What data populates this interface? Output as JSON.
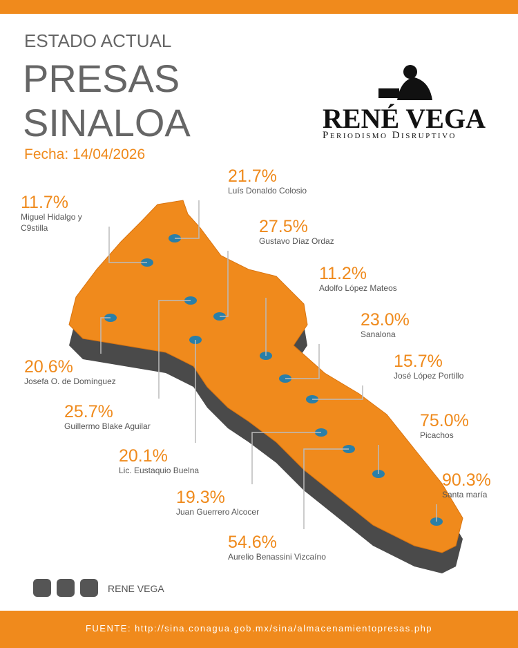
{
  "header": {
    "kicker": "ESTADO ACTUAL",
    "title_line1": "PRESAS",
    "title_line2": "SINALOA",
    "date": "Fecha: 14/04/2026"
  },
  "logo": {
    "name": "RENÉ VEGA",
    "tagline": "Periodismo Disruptivo"
  },
  "dams": [
    {
      "percent": "21.7%",
      "name": "Luís Donaldo Colosio"
    },
    {
      "percent": "11.7%",
      "name": "Miguel Hidalgo y C9stilla"
    },
    {
      "percent": "27.5%",
      "name": "Gustavo Díaz Ordaz"
    },
    {
      "percent": "11.2%",
      "name": "Adolfo López Mateos"
    },
    {
      "percent": "23.0%",
      "name": "Sanalona"
    },
    {
      "percent": "15.7%",
      "name": "José López Portillo"
    },
    {
      "percent": "75.0%",
      "name": "Picachos"
    },
    {
      "percent": "90.3%",
      "name": "Santa maría"
    },
    {
      "percent": "20.6%",
      "name": "Josefa O. de Domínguez"
    },
    {
      "percent": "25.7%",
      "name": "Guillermo Blake Aguilar"
    },
    {
      "percent": "20.1%",
      "name": "Lic. Eustaquio Buelna"
    },
    {
      "percent": "19.3%",
      "name": "Juan Guerrero Alcocer"
    },
    {
      "percent": "54.6%",
      "name": "Aurelio Benassini Vizcaíno"
    }
  ],
  "social": {
    "handle": "RENE VEGA"
  },
  "footer": {
    "source": "FUENTE: http://sina.conagua.gob.mx/sina/almacenamientopresas.php"
  }
}
